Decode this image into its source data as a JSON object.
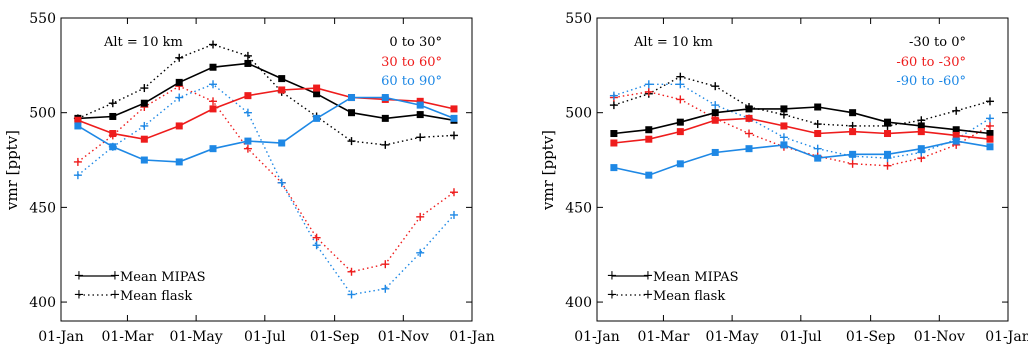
{
  "chart_data": [
    {
      "type": "line",
      "title": "",
      "xlabel": "",
      "ylabel": "vmr [pptv]",
      "ylim": [
        390,
        550
      ],
      "xlim": [
        0,
        365
      ],
      "yticks": [
        400,
        450,
        500,
        550
      ],
      "xticks": [
        {
          "day": 0,
          "label": "01-Jan"
        },
        {
          "day": 59,
          "label": "01-Mar"
        },
        {
          "day": 120,
          "label": "01-May"
        },
        {
          "day": 181,
          "label": "01-Jul"
        },
        {
          "day": 243,
          "label": "01-Sep"
        },
        {
          "day": 304,
          "label": "01-Nov"
        },
        {
          "day": 365,
          "label": "01-Jan"
        }
      ],
      "annotations": {
        "alt": "Alt = 10 km"
      },
      "legend_placement": "bottom-left",
      "legend": [
        {
          "label": "Mean MIPAS",
          "style": "solid"
        },
        {
          "label": "Mean flask",
          "style": "dotted"
        }
      ],
      "series": [
        {
          "name": "0 to 30°",
          "kind": "mipas",
          "color": "#000000",
          "x": [
            15,
            46,
            74,
            105,
            135,
            166,
            196,
            227,
            258,
            288,
            319,
            349
          ],
          "y": [
            497,
            498,
            505,
            516,
            524,
            526,
            518,
            510,
            500,
            497,
            499,
            496
          ]
        },
        {
          "name": "0 to 30°",
          "kind": "flask",
          "color": "#000000",
          "x": [
            15,
            46,
            74,
            105,
            135,
            166,
            196,
            227,
            258,
            288,
            319,
            349
          ],
          "y": [
            497,
            505,
            513,
            529,
            536,
            530,
            511,
            498,
            485,
            483,
            487,
            488
          ]
        },
        {
          "name": "30 to 60°",
          "kind": "mipas",
          "color": "#ee1c1c",
          "x": [
            15,
            46,
            74,
            105,
            135,
            166,
            196,
            227,
            258,
            288,
            319,
            349
          ],
          "y": [
            496,
            489,
            486,
            493,
            502,
            509,
            512,
            513,
            508,
            507,
            506,
            502
          ]
        },
        {
          "name": "30 to 60°",
          "kind": "flask",
          "color": "#ee1c1c",
          "x": [
            15,
            46,
            74,
            105,
            135,
            166,
            196,
            227,
            258,
            288,
            319,
            349
          ],
          "y": [
            474,
            488,
            503,
            514,
            506,
            481,
            463,
            434,
            416,
            420,
            445,
            458
          ]
        },
        {
          "name": "60 to 90°",
          "kind": "mipas",
          "color": "#1e88e5",
          "x": [
            15,
            46,
            74,
            105,
            135,
            166,
            196,
            227,
            258,
            288,
            319,
            349
          ],
          "y": [
            493,
            482,
            475,
            474,
            481,
            485,
            484,
            497,
            508,
            508,
            504,
            497
          ]
        },
        {
          "name": "60 to 90°",
          "kind": "flask",
          "color": "#1e88e5",
          "x": [
            15,
            46,
            74,
            105,
            135,
            166,
            196,
            227,
            258,
            288,
            319,
            349
          ],
          "y": [
            467,
            482,
            493,
            508,
            515,
            500,
            463,
            430,
            404,
            407,
            426,
            446
          ]
        }
      ]
    },
    {
      "type": "line",
      "title": "",
      "xlabel": "",
      "ylabel": "vmr [pptv]",
      "ylim": [
        390,
        550
      ],
      "xlim": [
        0,
        365
      ],
      "yticks": [
        400,
        450,
        500,
        550
      ],
      "xticks": [
        {
          "day": 0,
          "label": "01-Jan"
        },
        {
          "day": 59,
          "label": "01-Mar"
        },
        {
          "day": 120,
          "label": "01-May"
        },
        {
          "day": 181,
          "label": "01-Jul"
        },
        {
          "day": 243,
          "label": "01-Sep"
        },
        {
          "day": 304,
          "label": "01-Nov"
        },
        {
          "day": 365,
          "label": "01-Jan"
        }
      ],
      "annotations": {
        "alt": "Alt = 10 km"
      },
      "legend_placement": "bottom-left",
      "legend": [
        {
          "label": "Mean MIPAS",
          "style": "solid"
        },
        {
          "label": "Mean flask",
          "style": "dotted"
        }
      ],
      "series": [
        {
          "name": "-30 to 0°",
          "kind": "mipas",
          "color": "#000000",
          "x": [
            15,
            46,
            74,
            105,
            135,
            166,
            196,
            227,
            258,
            288,
            319,
            349
          ],
          "y": [
            489,
            491,
            495,
            500,
            502,
            502,
            503,
            500,
            495,
            493,
            491,
            489
          ]
        },
        {
          "name": "-30 to 0°",
          "kind": "flask",
          "color": "#000000",
          "x": [
            15,
            46,
            74,
            105,
            135,
            166,
            196,
            227,
            258,
            288,
            319,
            349
          ],
          "y": [
            504,
            510,
            519,
            514,
            503,
            499,
            494,
            493,
            493,
            496,
            501,
            506
          ]
        },
        {
          "name": "-60 to -30°",
          "kind": "mipas",
          "color": "#ee1c1c",
          "x": [
            15,
            46,
            74,
            105,
            135,
            166,
            196,
            227,
            258,
            288,
            319,
            349
          ],
          "y": [
            484,
            486,
            490,
            496,
            497,
            493,
            489,
            490,
            489,
            490,
            488,
            486
          ]
        },
        {
          "name": "-60 to -30°",
          "kind": "flask",
          "color": "#ee1c1c",
          "x": [
            15,
            46,
            74,
            105,
            135,
            166,
            196,
            227,
            258,
            288,
            319,
            349
          ],
          "y": [
            508,
            511,
            507,
            497,
            489,
            482,
            477,
            473,
            472,
            476,
            483,
            493
          ]
        },
        {
          "name": "-90 to -60°",
          "kind": "mipas",
          "color": "#1e88e5",
          "x": [
            15,
            46,
            74,
            105,
            135,
            166,
            196,
            227,
            258,
            288,
            319,
            349
          ],
          "y": [
            471,
            467,
            473,
            479,
            481,
            483,
            476,
            478,
            478,
            481,
            485,
            482
          ]
        },
        {
          "name": "-90 to -60°",
          "kind": "flask",
          "color": "#1e88e5",
          "x": [
            15,
            46,
            74,
            105,
            135,
            166,
            196,
            227,
            258,
            288,
            319,
            349
          ],
          "y": [
            509,
            515,
            515,
            504,
            497,
            487,
            481,
            477,
            476,
            479,
            486,
            497
          ]
        }
      ]
    }
  ]
}
